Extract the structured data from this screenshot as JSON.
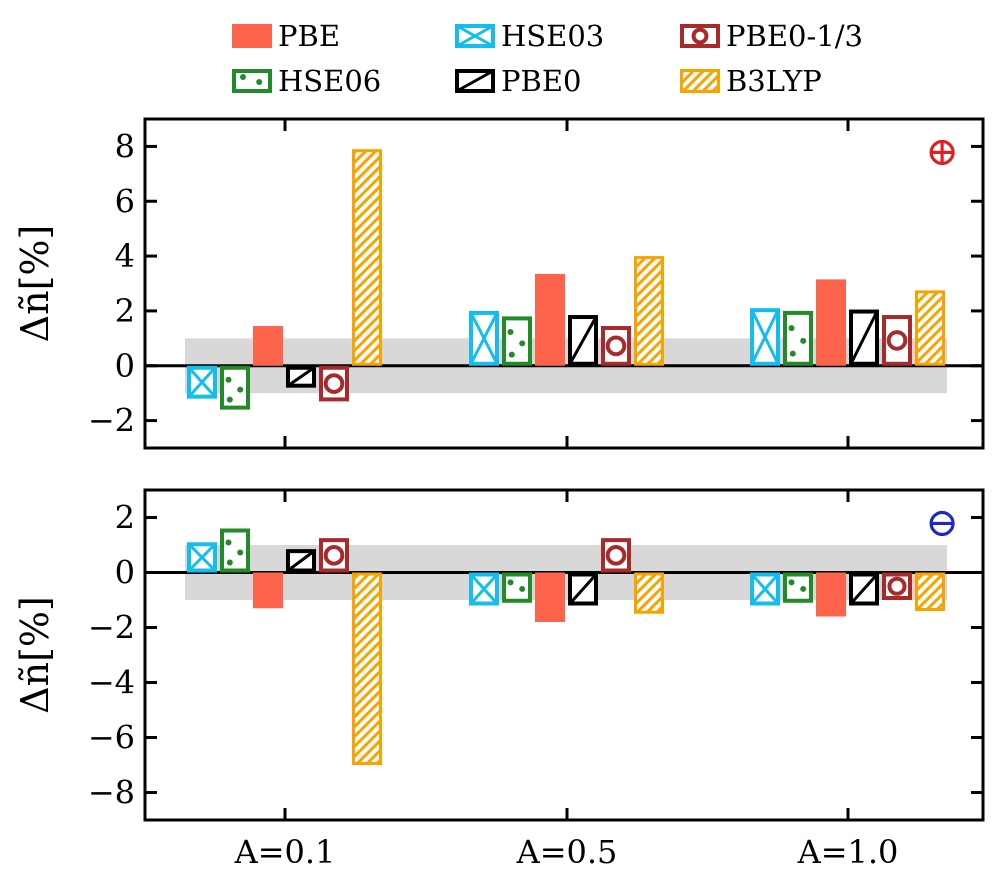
{
  "chart_data": [
    {
      "type": "bar",
      "title": "",
      "panel_symbol": "⊕",
      "symbol_color": "#e0201c",
      "ylabel": "Δñ[%]",
      "xlabel": "",
      "ylim": [
        -3,
        9
      ],
      "yticks": [
        -2,
        0,
        2,
        4,
        6,
        8
      ],
      "ytick_labels": [
        "−2",
        "0",
        "2",
        "4",
        "6",
        "8"
      ],
      "band": [
        -1,
        1
      ],
      "categories": [
        "A=0.1",
        "A=0.5",
        "A=1.0"
      ],
      "series": [
        {
          "name": "HSE03",
          "values": [
            -1.2,
            2.0,
            2.1
          ]
        },
        {
          "name": "HSE06",
          "values": [
            -1.6,
            1.8,
            2.0
          ]
        },
        {
          "name": "PBE",
          "values": [
            1.45,
            3.35,
            3.15
          ]
        },
        {
          "name": "PBE0",
          "values": [
            -0.8,
            1.85,
            2.05
          ]
        },
        {
          "name": "PBE0-1/3",
          "values": [
            -1.3,
            1.45,
            1.85
          ]
        },
        {
          "name": "B3LYP",
          "values": [
            7.9,
            4.0,
            2.75
          ]
        }
      ]
    },
    {
      "type": "bar",
      "title": "",
      "panel_symbol": "⊖",
      "symbol_color": "#1c28c8",
      "ylabel": "Δñ[%]",
      "xlabel": "",
      "ylim": [
        -9,
        3
      ],
      "yticks": [
        -8,
        -6,
        -4,
        -2,
        0,
        2
      ],
      "ytick_labels": [
        "−8",
        "−6",
        "−4",
        "−2",
        "0",
        "2"
      ],
      "band": [
        -1,
        1
      ],
      "categories": [
        "A=0.1",
        "A=0.5",
        "A=1.0"
      ],
      "series": [
        {
          "name": "HSE03",
          "values": [
            1.1,
            -1.2,
            -1.2
          ]
        },
        {
          "name": "HSE06",
          "values": [
            1.6,
            -1.1,
            -1.1
          ]
        },
        {
          "name": "PBE",
          "values": [
            -1.3,
            -1.8,
            -1.6
          ]
        },
        {
          "name": "PBE0",
          "values": [
            0.85,
            -1.2,
            -1.2
          ]
        },
        {
          "name": "PBE0-1/3",
          "values": [
            1.25,
            1.25,
            -1.0
          ]
        },
        {
          "name": "B3LYP",
          "values": [
            -7.0,
            -1.5,
            -1.4
          ]
        }
      ]
    }
  ],
  "legend": {
    "position": "top",
    "items": [
      {
        "name": "PBE",
        "color": "#fe634b",
        "style": "solid"
      },
      {
        "name": "HSE03",
        "color": "#13bdee",
        "style": "x"
      },
      {
        "name": "PBE0-1/3",
        "color": "#a82a2a",
        "style": "ring"
      },
      {
        "name": "HSE06",
        "color": "#238a28",
        "style": "dots"
      },
      {
        "name": "PBE0",
        "color": "#000000",
        "style": "slash"
      },
      {
        "name": "B3LYP",
        "color": "#f8a300",
        "style": "hatch"
      }
    ]
  }
}
